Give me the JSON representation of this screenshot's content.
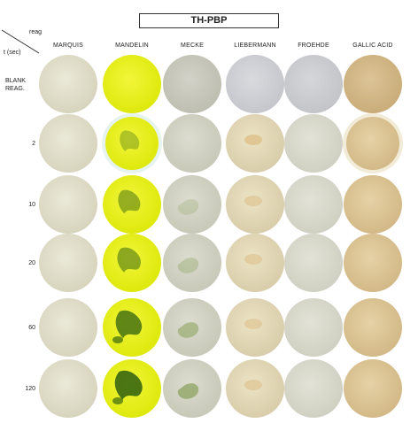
{
  "title": "TH-PBP",
  "corner": {
    "top_label": "reag",
    "bottom_label": "t (sec)"
  },
  "reagents": [
    "MARQUIS",
    "MANDELIN",
    "MECKE",
    "LIEBERMANN",
    "FROEHDE",
    "GALLIC ACID"
  ],
  "times": [
    "BLANK\nREAG.",
    "2",
    "10",
    "20",
    "60",
    "120"
  ],
  "colors": {
    "well_base": "#dcdcd4",
    "marquis": "#e2e0c8",
    "mandelin_yellow": "#eaf20e",
    "mandelin_green": "#3c6a10",
    "mecke": "#d6d6c8",
    "mecke_green": "#88a058",
    "liebermann": "#e6dcb4",
    "liebermann_orange": "#d8b070",
    "froehde": "#dcdccc",
    "gallic_acid": "#dec898"
  },
  "wells": [
    [
      "marquis-blank",
      "mandelin-blank",
      "mecke-blank",
      "liebermann-blank",
      "froehde-blank",
      "gallic-blank"
    ],
    [
      "marquis-2",
      "mandelin-2",
      "mecke-2",
      "liebermann-2",
      "froehde-2",
      "gallic-2"
    ],
    [
      "marquis-10",
      "mandelin-10",
      "mecke-10",
      "liebermann-10",
      "froehde-10",
      "gallic-10"
    ],
    [
      "marquis-20",
      "mandelin-20",
      "mecke-20",
      "liebermann-20",
      "froehde-20",
      "gallic-20"
    ],
    [
      "marquis-60",
      "mandelin-60",
      "mecke-60",
      "liebermann-60",
      "froehde-60",
      "gallic-60"
    ],
    [
      "marquis-120",
      "mandelin-120",
      "mecke-120",
      "liebermann-120",
      "froehde-120",
      "gallic-120"
    ]
  ]
}
